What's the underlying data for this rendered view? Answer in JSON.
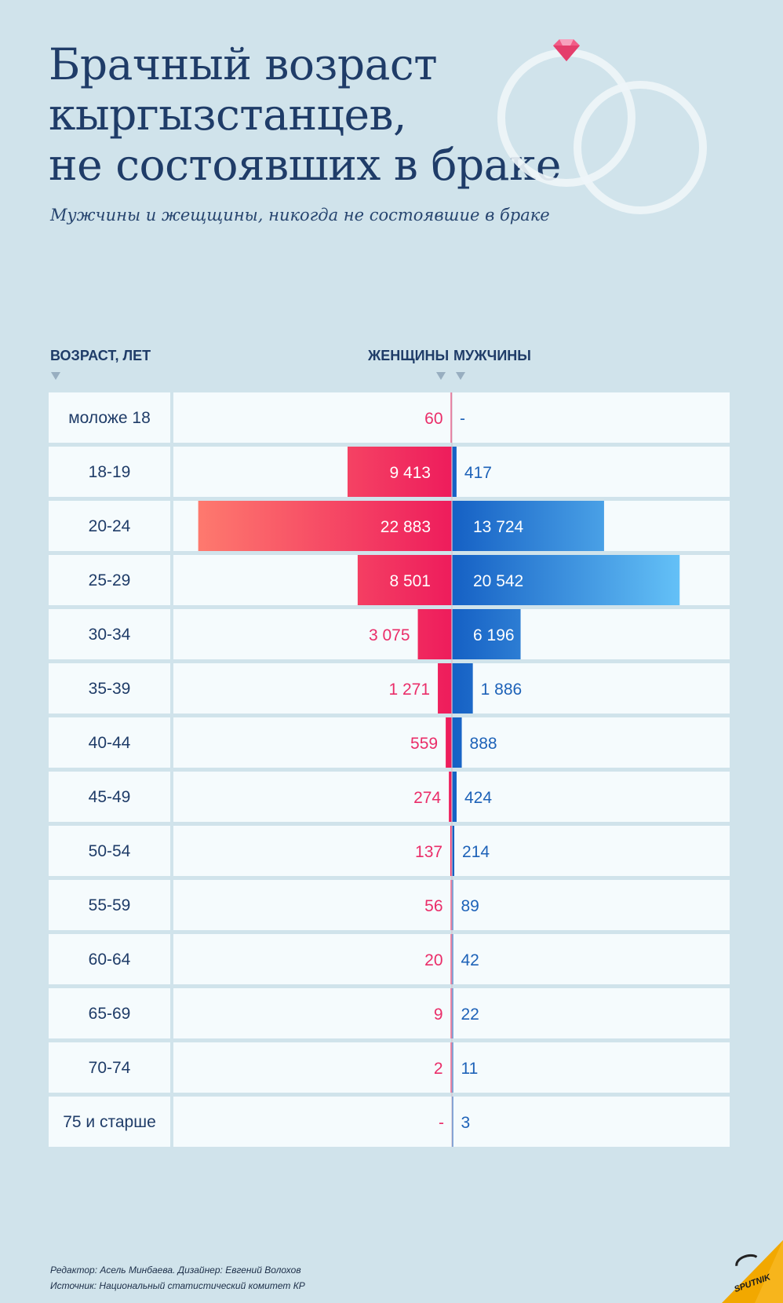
{
  "title_lines": [
    "Брачный возраст",
    "кыргызстанцев,",
    "не состоявших в браке"
  ],
  "subtitle": "Мужчины и жещщины, никогда не состоявшие в браке",
  "headers": {
    "age": "ВОЗРАСТ, ЛЕТ",
    "women": "ЖЕНЩИНЫ",
    "men": "МУЖЧИНЫ"
  },
  "colors": {
    "women_dark": "#ee1c5c",
    "women_light": "#fe7a6e",
    "men_dark": "#1560c4",
    "men_light": "#6dccfd",
    "women_text": "#ea2d69",
    "men_text": "#1d62b8",
    "title": "#1f3c68",
    "background": "#d0e3eb",
    "row_bg": "#f5fbfd"
  },
  "chart_data": {
    "type": "bar",
    "orientation": "horizontal-butterfly",
    "title": "Брачный возраст кыргызстанцев, не состоявших в браке",
    "subtitle": "Мужчины и жещщины, никогда не состоявшие в браке",
    "ylabel": "ВОЗРАСТ, ЛЕТ",
    "categories": [
      "моложе 18",
      "18-19",
      "20-24",
      "25-29",
      "30-34",
      "35-39",
      "40-44",
      "45-49",
      "50-54",
      "55-59",
      "60-64",
      "65-69",
      "70-74",
      "75 и старше"
    ],
    "series": [
      {
        "name": "ЖЕНЩИНЫ",
        "values": [
          60,
          9413,
          22883,
          8501,
          3075,
          1271,
          559,
          274,
          137,
          56,
          20,
          9,
          2,
          0
        ],
        "labels": [
          "60",
          "9 413",
          "22 883",
          "8 501",
          "3 075",
          "1 271",
          "559",
          "274",
          "137",
          "56",
          "20",
          "9",
          "2",
          "-"
        ]
      },
      {
        "name": "МУЖЧИНЫ",
        "values": [
          0,
          417,
          13724,
          20542,
          6196,
          1886,
          888,
          424,
          214,
          89,
          42,
          22,
          11,
          3
        ],
        "labels": [
          "-",
          "417",
          "13 724",
          "20 542",
          "6 196",
          "1 886",
          "888",
          "424",
          "214",
          "89",
          "42",
          "22",
          "11",
          "3"
        ]
      }
    ],
    "xlim": [
      0,
      23000
    ]
  },
  "credits": {
    "line1": "Редактор: Асель Минбаева. Дизайнер: Евгений Волохов",
    "line2": "Источник: Национальный статистический комитет КР"
  },
  "logo_text": "SPUTNIK",
  "icons": {
    "rings": "wedding-rings-icon",
    "gem": "diamond-icon",
    "logo": "sputnik-logo"
  }
}
